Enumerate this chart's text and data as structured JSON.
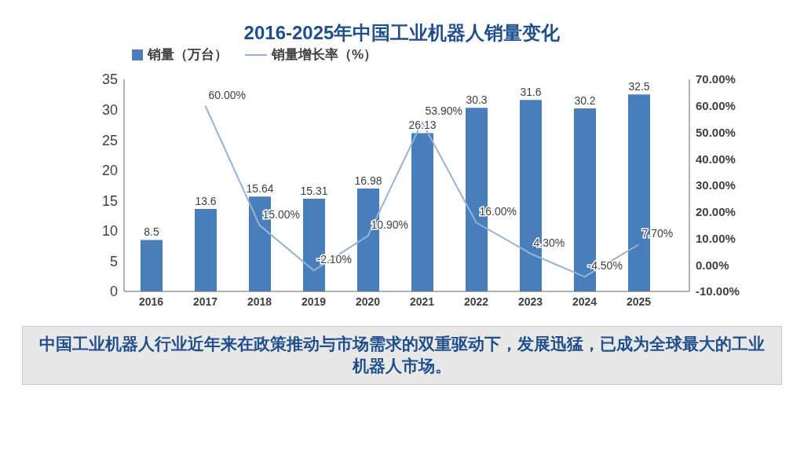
{
  "chart_data": {
    "type": "bar",
    "title": "2016-2025年中国工业机器人销量变化",
    "categories": [
      "2016",
      "2017",
      "2018",
      "2019",
      "2020",
      "2021",
      "2022",
      "2023",
      "2024",
      "2025"
    ],
    "series": [
      {
        "name": "销量（万台）",
        "color": "#4a7ebb",
        "values": [
          8.5,
          13.6,
          15.64,
          15.31,
          16.98,
          26.13,
          30.3,
          31.6,
          30.2,
          32.5
        ],
        "value_labels": [
          "8.5",
          "13.6",
          "15.64",
          "15.31",
          "16.98",
          "26.13",
          "30.3",
          "31.6",
          "30.2",
          "32.5"
        ]
      },
      {
        "name": "销量增长率（%）",
        "type": "line",
        "axis": "y2",
        "color": "#95b3d7",
        "values": [
          null,
          60,
          15,
          -2.1,
          10.9,
          53.9,
          16,
          4.3,
          -4.5,
          7.7
        ],
        "value_labels": [
          null,
          "60.00%",
          "15.00%",
          "-2.10%",
          "10.90%",
          "53.90%",
          "16.00%",
          "4.30%",
          "-4.50%",
          "7.70%"
        ]
      }
    ],
    "ylim": [
      0,
      35
    ],
    "yticks": [
      0,
      5,
      10,
      15,
      20,
      25,
      30,
      35
    ],
    "y2lim": [
      -10,
      70
    ],
    "y2ticks": [
      {
        "value": -10,
        "label": "-10.00%"
      },
      {
        "value": 0,
        "label": "0.00%"
      },
      {
        "value": 10,
        "label": "10.00%"
      },
      {
        "value": 20,
        "label": "20.00%"
      },
      {
        "value": 30,
        "label": "30.00%"
      },
      {
        "value": 40,
        "label": "40.00%"
      },
      {
        "value": 50,
        "label": "50.00%"
      },
      {
        "value": 60,
        "label": "60.00%"
      },
      {
        "value": 70,
        "label": "70.00%"
      }
    ],
    "grid": false,
    "legend": "top left",
    "marker": "none",
    "line_style": "solid",
    "annotations": [
      "中国工业机器人行业近年来在政策推动与市场需求的双重驱动下，发展迅猛，已成为全球最大的工业机器人市场。"
    ]
  }
}
